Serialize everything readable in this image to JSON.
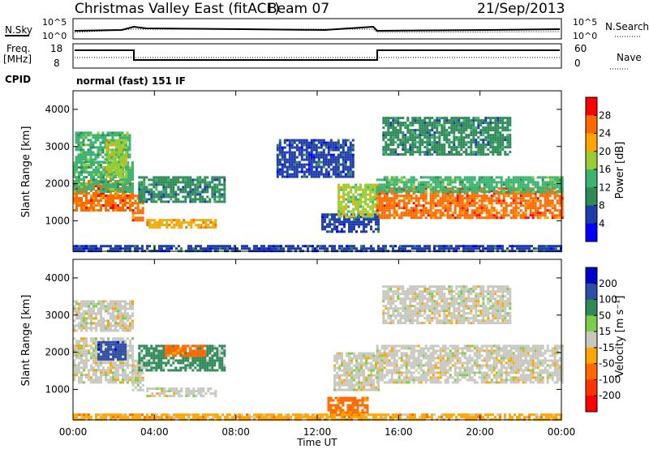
{
  "header": {
    "title": "Christmas Valley East (fitACF)",
    "beam": "Beam 07",
    "date": "21/Sep/2013"
  },
  "status": {
    "nsky_label": "N.Sky",
    "nsearch_label": "N.Search",
    "freq_label_line1": "Freq.",
    "freq_label_line2": "[MHz]",
    "nave_label": "Nave",
    "cpid_label": "CPID",
    "cpid_value": "normal (fast) 151 IF",
    "noise_ticks_left": [
      "10^5",
      "10^0"
    ],
    "noise_ticks_right": [
      "10^5",
      "10^0"
    ],
    "freq_ticks": [
      "18",
      "8"
    ],
    "nave_ticks": [
      "60",
      "0"
    ]
  },
  "chart_data": [
    {
      "type": "heatmap",
      "name": "power",
      "ylabel": "Slant Range [km]",
      "xlabel": "",
      "ylim": [
        180,
        4500
      ],
      "yticks": [
        "1000",
        "2000",
        "3000",
        "4000"
      ],
      "xticks": [
        "00:00",
        "04:00",
        "08:00",
        "12:00",
        "16:00",
        "20:00",
        "00:00"
      ],
      "colorbar": {
        "label": "Power [dB]",
        "ticks": [
          "28",
          "24",
          "20",
          "16",
          "12",
          "8",
          "4"
        ],
        "colors": [
          "#ff0000",
          "#ff6a00",
          "#ffa500",
          "#9acd32",
          "#3cb371",
          "#2e8b57",
          "#1e3caa",
          "#0000ff"
        ]
      },
      "regions": [
        {
          "t": [
            0.0,
            2.9
          ],
          "r": [
            1300,
            2100
          ],
          "db": 26
        },
        {
          "t": [
            0.0,
            2.9
          ],
          "r": [
            1800,
            2600
          ],
          "db": 16
        },
        {
          "t": [
            0.1,
            2.8
          ],
          "r": [
            2600,
            3400
          ],
          "db": 14
        },
        {
          "t": [
            1.6,
            2.6
          ],
          "r": [
            2200,
            3200
          ],
          "db": 18
        },
        {
          "t": [
            2.9,
            3.4
          ],
          "r": [
            1000,
            1700
          ],
          "db": 25
        },
        {
          "t": [
            3.2,
            7.5
          ],
          "r": [
            1500,
            2200
          ],
          "db": 12
        },
        {
          "t": [
            3.6,
            7.0
          ],
          "r": [
            850,
            1050
          ],
          "db": 24
        },
        {
          "t": [
            10.0,
            13.8
          ],
          "r": [
            2200,
            3200
          ],
          "db": 6
        },
        {
          "t": [
            12.2,
            15.0
          ],
          "r": [
            700,
            1200
          ],
          "db": 6
        },
        {
          "t": [
            13.0,
            15.0
          ],
          "r": [
            1100,
            2000
          ],
          "db": 20
        },
        {
          "t": [
            14.9,
            24.0
          ],
          "r": [
            1100,
            1900
          ],
          "db": 26
        },
        {
          "t": [
            14.9,
            24.0
          ],
          "r": [
            1800,
            2200
          ],
          "db": 14
        },
        {
          "t": [
            15.2,
            21.5
          ],
          "r": [
            2800,
            3800
          ],
          "db": 10
        },
        {
          "t": [
            0.0,
            24.0
          ],
          "r": [
            180,
            350
          ],
          "db": 8
        }
      ]
    },
    {
      "type": "heatmap",
      "name": "velocity",
      "ylabel": "Slant Range [km]",
      "xlabel": "Time UT",
      "ylim": [
        180,
        4500
      ],
      "yticks": [
        "1000",
        "2000",
        "3000",
        "4000"
      ],
      "xticks": [
        "00:00",
        "04:00",
        "08:00",
        "12:00",
        "16:00",
        "20:00",
        "00:00"
      ],
      "colorbar": {
        "label": "Velocity [m s⁻¹]",
        "ticks": [
          "200",
          "100",
          "50",
          "15",
          "-15",
          "-50",
          "-100",
          "-200"
        ],
        "colors": [
          "#0000cc",
          "#2e4da6",
          "#2e8b57",
          "#7ccd4a",
          "#c8c8c0",
          "#ffa500",
          "#ff6a00",
          "#ff3300",
          "#ff0000"
        ]
      },
      "regions": [
        {
          "t": [
            0.0,
            2.9
          ],
          "r": [
            1200,
            2400
          ],
          "v": 0
        },
        {
          "t": [
            0.0,
            2.9
          ],
          "r": [
            2600,
            3400
          ],
          "v": 0
        },
        {
          "t": [
            1.2,
            2.6
          ],
          "r": [
            1800,
            2300
          ],
          "v": 180
        },
        {
          "t": [
            2.9,
            3.4
          ],
          "r": [
            1000,
            1800
          ],
          "v": 0
        },
        {
          "t": [
            3.2,
            7.5
          ],
          "r": [
            1500,
            2200
          ],
          "v": 50
        },
        {
          "t": [
            4.5,
            6.5
          ],
          "r": [
            1900,
            2200
          ],
          "v": -60
        },
        {
          "t": [
            3.6,
            7.0
          ],
          "r": [
            850,
            1050
          ],
          "v": 0
        },
        {
          "t": [
            12.8,
            15.0
          ],
          "r": [
            1000,
            2000
          ],
          "v": 0
        },
        {
          "t": [
            12.5,
            14.5
          ],
          "r": [
            300,
            800
          ],
          "v": -60
        },
        {
          "t": [
            14.9,
            24.0
          ],
          "r": [
            1200,
            2200
          ],
          "v": 0
        },
        {
          "t": [
            15.2,
            21.5
          ],
          "r": [
            2800,
            3800
          ],
          "v": 0
        },
        {
          "t": [
            0.0,
            24.0
          ],
          "r": [
            180,
            350
          ],
          "v": -40
        }
      ]
    }
  ],
  "colors": {
    "text": "#000000",
    "background": "#ffffff"
  }
}
